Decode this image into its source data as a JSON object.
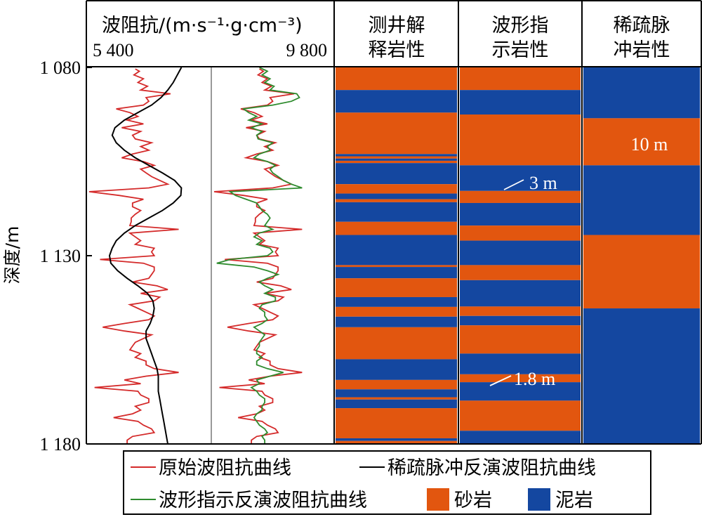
{
  "chart_data": {
    "type": "well-log",
    "impedance_track": {
      "title": "波阻抗/(m·s⁻¹·g·cm⁻³)",
      "xmin_label": "5 400",
      "xmax_label": "9 800",
      "xlim": [
        5400,
        9800
      ]
    },
    "depth_axis": {
      "ylabel": "深度/m",
      "ylim": [
        1080,
        1180
      ],
      "ticks": [
        1080,
        1130,
        1180
      ],
      "tick_labels": [
        "1 080",
        "1 130",
        "1 180"
      ]
    },
    "column_headers": {
      "well": [
        "测井解",
        "释岩性"
      ],
      "waveform": [
        "波形指",
        "示岩性"
      ],
      "sparse": [
        "稀疏脉",
        "冲岩性"
      ]
    },
    "colors": {
      "sand": "#e2560f",
      "mud": "#1447a0",
      "original_curve": "#d42a2a",
      "sparse_curve": "#000000",
      "waveform_curve": "#2e8b2e",
      "divider": "#999999"
    },
    "series": [
      {
        "name": "原始波阻抗曲线",
        "depth": [
          1080.4,
          1081,
          1082,
          1083,
          1084,
          1085,
          1086,
          1087,
          1088,
          1089,
          1090,
          1091,
          1092,
          1093,
          1094,
          1095,
          1096,
          1097,
          1098,
          1099,
          1100,
          1101,
          1102,
          1103,
          1104,
          1105,
          1106,
          1107,
          1108,
          1109,
          1110,
          1111,
          1112,
          1113,
          1114,
          1115,
          1116,
          1117,
          1118,
          1119,
          1120,
          1121,
          1122,
          1123,
          1124,
          1125,
          1126,
          1127,
          1128,
          1129,
          1130,
          1131,
          1132,
          1133,
          1134,
          1135,
          1136,
          1137,
          1138,
          1139,
          1140,
          1141,
          1142,
          1143,
          1144,
          1145,
          1146,
          1147,
          1148,
          1149,
          1150,
          1151,
          1152,
          1153,
          1154,
          1155,
          1156,
          1157,
          1158,
          1159,
          1160,
          1161,
          1162,
          1163,
          1164,
          1165,
          1166,
          1167,
          1168,
          1169,
          1170,
          1171,
          1172,
          1173,
          1174,
          1175,
          1176,
          1177,
          1178,
          1179,
          1180
        ],
        "value": [
          7100,
          7250,
          7050,
          7400,
          7200,
          7550,
          7300,
          8400,
          7500,
          7600,
          7400,
          6400,
          6900,
          7200,
          6800,
          7400,
          6600,
          7300,
          7000,
          7100,
          7700,
          7300,
          7600,
          7000,
          6600,
          7400,
          7800,
          7300,
          7500,
          7700,
          8000,
          8300,
          7600,
          5400,
          6500,
          7400,
          7000,
          7000,
          7300,
          7100,
          6950,
          6950,
          6900,
          8700,
          6900,
          7100,
          7300,
          7100,
          7800,
          7700,
          7800,
          5800,
          7400,
          7800,
          7800,
          7700,
          7600,
          7000,
          7900,
          8300,
          7300,
          8000,
          7800,
          6900,
          7200,
          7500,
          7800,
          7600,
          6700,
          5900,
          6700,
          7700,
          7400,
          7100,
          7000,
          6900,
          7300,
          7100,
          7500,
          7500,
          7800,
          8700,
          7500,
          6700,
          7300,
          5600,
          7200,
          7300,
          7600,
          7600,
          7100,
          7300,
          7000,
          6300,
          7200,
          7400,
          7700,
          7800,
          7000,
          6800,
          6800
        ]
      },
      {
        "name": "稀疏脉冲反演波阻抗曲线",
        "depth": [
          1080,
          1082,
          1084,
          1086,
          1088,
          1090,
          1092,
          1094,
          1096,
          1098,
          1100,
          1102,
          1104,
          1106,
          1108,
          1110,
          1112,
          1114,
          1116,
          1118,
          1120,
          1122,
          1124,
          1126,
          1128,
          1130,
          1132,
          1134,
          1136,
          1138,
          1140,
          1142,
          1144,
          1146,
          1148,
          1150,
          1152,
          1154,
          1156,
          1158,
          1160,
          1162,
          1164,
          1166,
          1168,
          1170,
          1172,
          1174,
          1176,
          1178,
          1180
        ],
        "value": [
          8800,
          8650,
          8500,
          8300,
          8050,
          7700,
          7200,
          6700,
          6350,
          6250,
          6400,
          6700,
          7100,
          7600,
          8100,
          8550,
          8800,
          8780,
          8500,
          8100,
          7600,
          7100,
          6700,
          6400,
          6250,
          6150,
          6200,
          6450,
          6800,
          7200,
          7550,
          7750,
          7800,
          7750,
          7650,
          7500,
          7500,
          7600,
          7700,
          7800,
          7900,
          7950,
          7950,
          7950,
          8000,
          8050,
          8100,
          8150,
          8200,
          8250,
          8300
        ]
      },
      {
        "name": "波形指示反演波阻抗曲线",
        "depth": [
          1080,
          1081,
          1082,
          1083,
          1084,
          1085,
          1086,
          1087,
          1088,
          1089,
          1090,
          1091,
          1092,
          1093,
          1094,
          1095,
          1096,
          1097,
          1098,
          1099,
          1100,
          1101,
          1102,
          1103,
          1104,
          1105,
          1106,
          1107,
          1108,
          1109,
          1110,
          1111,
          1112,
          1113,
          1114,
          1115,
          1116,
          1117,
          1118,
          1119,
          1120,
          1121,
          1122,
          1123,
          1124,
          1125,
          1126,
          1127,
          1128,
          1129,
          1130,
          1131,
          1132,
          1133,
          1134,
          1135,
          1136,
          1137,
          1138,
          1139,
          1140,
          1141,
          1142,
          1143,
          1144,
          1145,
          1146,
          1147,
          1148,
          1149,
          1150,
          1151,
          1152,
          1153,
          1154,
          1155,
          1156,
          1157,
          1158,
          1159,
          1160,
          1161,
          1162,
          1163,
          1164,
          1165,
          1166,
          1167,
          1168,
          1169,
          1170,
          1171,
          1172,
          1173,
          1174,
          1175,
          1176,
          1177,
          1178,
          1179,
          1180
        ],
        "value": [
          7100,
          7400,
          7200,
          7500,
          7300,
          7650,
          7500,
          8500,
          8600,
          8300,
          7600,
          6500,
          6700,
          7000,
          6700,
          7200,
          6800,
          7200,
          7000,
          7050,
          7600,
          7400,
          7500,
          7100,
          6900,
          7400,
          7700,
          7500,
          7600,
          7800,
          8000,
          8300,
          8700,
          6000,
          6200,
          6600,
          7000,
          7100,
          7200,
          7400,
          7500,
          7400,
          7300,
          7600,
          7100,
          6900,
          7200,
          7000,
          7500,
          7600,
          7400,
          6000,
          5500,
          6900,
          7400,
          7800,
          7400,
          7100,
          7300,
          7600,
          7300,
          7700,
          7700,
          7200,
          7100,
          7300,
          7300,
          7400,
          7200,
          6900,
          7100,
          7300,
          7200,
          7100,
          7100,
          7000,
          7000,
          7200,
          7000,
          7000,
          7400,
          8000,
          7500,
          7000,
          7100,
          6800,
          7000,
          7100,
          7300,
          7300,
          7200,
          7200,
          7000,
          6900,
          7000,
          7100,
          7300,
          7400,
          7200,
          7300,
          7300
        ]
      }
    ],
    "lithology": {
      "well": [
        [
          1080,
          1086,
          "sand"
        ],
        [
          1086,
          1092,
          "mud"
        ],
        [
          1092,
          1103,
          "sand"
        ],
        [
          1103,
          1103.6,
          "mud"
        ],
        [
          1103.6,
          1104.2,
          "sand"
        ],
        [
          1104.2,
          1104.8,
          "mud"
        ],
        [
          1104.8,
          1105.4,
          "sand"
        ],
        [
          1105.4,
          1111,
          "mud"
        ],
        [
          1111,
          1113.5,
          "sand"
        ],
        [
          1113.5,
          1115,
          "mud"
        ],
        [
          1115,
          1115.8,
          "sand"
        ],
        [
          1115.8,
          1121,
          "mud"
        ],
        [
          1121,
          1124.5,
          "sand"
        ],
        [
          1124.5,
          1132.5,
          "mud"
        ],
        [
          1132.5,
          1133,
          "sand"
        ],
        [
          1133,
          1136,
          "mud"
        ],
        [
          1136,
          1141,
          "sand"
        ],
        [
          1141,
          1143.6,
          "mud"
        ],
        [
          1143.6,
          1146.2,
          "sand"
        ],
        [
          1146.2,
          1149,
          "mud"
        ],
        [
          1149,
          1157.5,
          "sand"
        ],
        [
          1157.5,
          1163,
          "mud"
        ],
        [
          1163,
          1165.5,
          "sand"
        ],
        [
          1165.5,
          1167.6,
          "mud"
        ],
        [
          1167.6,
          1168.2,
          "sand"
        ],
        [
          1168.2,
          1170.5,
          "mud"
        ],
        [
          1170.5,
          1178.5,
          "sand"
        ],
        [
          1178.5,
          1179.2,
          "mud"
        ],
        [
          1179.2,
          1180,
          "sand"
        ]
      ],
      "waveform": [
        [
          1080,
          1086,
          "sand"
        ],
        [
          1086,
          1092.5,
          "mud"
        ],
        [
          1092.5,
          1106,
          "sand"
        ],
        [
          1106,
          1112.8,
          "mud"
        ],
        [
          1112.8,
          1116,
          "sand"
        ],
        [
          1116,
          1122,
          "mud"
        ],
        [
          1122,
          1126,
          "sand"
        ],
        [
          1126,
          1132.5,
          "mud"
        ],
        [
          1132.5,
          1136.5,
          "sand"
        ],
        [
          1136.5,
          1143.5,
          "mud"
        ],
        [
          1143.5,
          1146,
          "sand"
        ],
        [
          1146,
          1148.5,
          "mud"
        ],
        [
          1148.5,
          1156,
          "sand"
        ],
        [
          1156,
          1161.5,
          "mud"
        ],
        [
          1161.5,
          1163.6,
          "sand"
        ],
        [
          1163.6,
          1168.5,
          "mud"
        ],
        [
          1168.5,
          1176.5,
          "sand"
        ],
        [
          1176.5,
          1180,
          "mud"
        ]
      ],
      "sparse": [
        [
          1080,
          1093.5,
          "mud"
        ],
        [
          1093.5,
          1106,
          "sand"
        ],
        [
          1106,
          1124.5,
          "mud"
        ],
        [
          1124.5,
          1144,
          "sand"
        ],
        [
          1144,
          1180,
          "mud"
        ]
      ]
    },
    "annotations": [
      {
        "text": "10 m",
        "column": "sparse",
        "depth": 1100.5
      },
      {
        "text": "3 m",
        "column": "waveform",
        "depth": 1115
      },
      {
        "text": "1.8 m",
        "column": "waveform",
        "depth": 1165
      }
    ],
    "legend": {
      "original": "原始波阻抗曲线",
      "sparse": "稀疏脉冲反演波阻抗曲线",
      "waveform": "波形指示反演波阻抗曲线",
      "sand": "砂岩",
      "mud": "泥岩"
    }
  }
}
